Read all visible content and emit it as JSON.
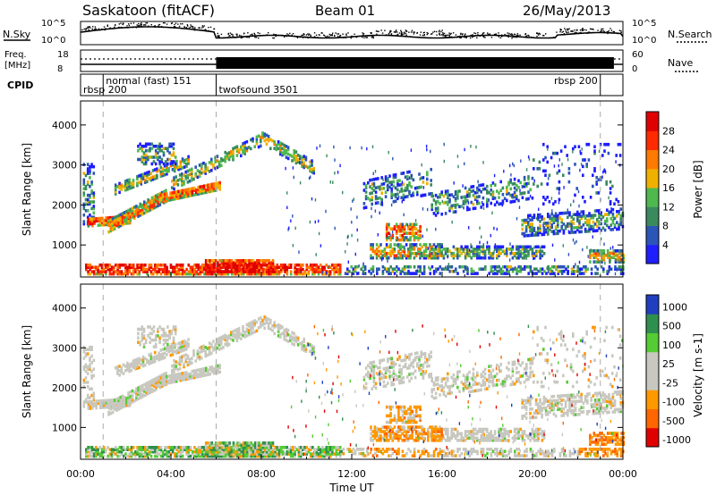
{
  "header": {
    "title": "Saskatoon (fitACF)",
    "beam": "Beam 01",
    "date": "26/May/2013"
  },
  "labels": {
    "nsky": "N.Sky",
    "nsearch": "N.Search",
    "freq": "Freq.",
    "mhz": "[MHz]",
    "nave": "Nave",
    "cpid": "CPID"
  },
  "colors": {
    "power_scale": [
      "#1e1eff",
      "#2c55b8",
      "#3a8a5e",
      "#4fb84f",
      "#f0b000",
      "#ff7a00",
      "#ff2a00",
      "#e00000"
    ],
    "velocity_scale": [
      "#e00000",
      "#ff6600",
      "#ff9900",
      "#c8c8c0",
      "#c8c8c0",
      "#55cc33",
      "#2f8f4f",
      "#1f3fbf"
    ]
  },
  "chart_data": [
    {
      "type": "line",
      "name": "noise-panel",
      "left_axis": {
        "ticks": [
          "10^5",
          "10^0"
        ],
        "label": "N.Sky"
      },
      "right_axis": {
        "ticks": [
          "10^5",
          "10^0"
        ],
        "label": "N.Search"
      }
    },
    {
      "type": "line",
      "name": "freq-panel",
      "left_axis": {
        "ticks": [
          "18",
          "8"
        ],
        "label": "Freq. [MHz]"
      },
      "right_axis": {
        "ticks": [
          "60",
          "0"
        ],
        "label": "Nave"
      }
    },
    {
      "type": "table",
      "name": "cpid-panel",
      "label": "CPID",
      "segments": [
        {
          "label": "rbsp 200",
          "start_h": 0.0
        },
        {
          "label": "normal (fast) 151",
          "start_h": 1.0
        },
        {
          "label": "twofsound 3501",
          "start_h": 6.0
        },
        {
          "label": "rbsp 200",
          "start_h": 23.0
        }
      ]
    },
    {
      "type": "heatmap",
      "name": "power-panel",
      "ylabel": "Slant Range [km]",
      "ylim": [
        200,
        4600
      ],
      "yticks": [
        1000,
        2000,
        3000,
        4000
      ],
      "xlim": [
        0,
        24
      ],
      "colorbar": {
        "label": "Power [dB]",
        "ticks": [
          4,
          8,
          12,
          16,
          20,
          24,
          28
        ],
        "range": [
          0,
          32
        ]
      }
    },
    {
      "type": "heatmap",
      "name": "velocity-panel",
      "ylabel": "Slant Range [km]",
      "ylim": [
        200,
        4600
      ],
      "yticks": [
        1000,
        2000,
        3000,
        4000
      ],
      "xlim": [
        0,
        24
      ],
      "xticks": [
        "00:00",
        "04:00",
        "08:00",
        "12:00",
        "16:00",
        "20:00",
        "00:00"
      ],
      "xlabel": "Time UT",
      "colorbar": {
        "label": "Velocity [m s-1]",
        "ticks": [
          "1000",
          "500",
          "100",
          "25",
          "-25",
          "-100",
          "-500",
          "-1000"
        ]
      }
    }
  ]
}
